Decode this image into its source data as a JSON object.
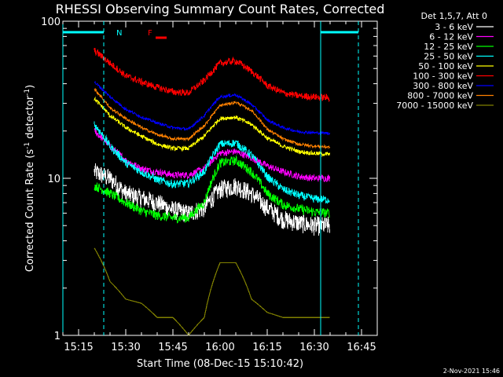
{
  "chart_data": {
    "type": "line",
    "title": "RHESSI Observing Summary Count Rates, Corrected",
    "xlabel": "Start Time (08-Dec-15 15:10:42)",
    "ylabel": "Corrected Count Rate (s",
    "ylabel_sup1": "-1",
    "ylabel_mid": " detector",
    "ylabel_sup2": "-1",
    "ylabel_end": ")",
    "y_scale": "log",
    "ylim": [
      1,
      100
    ],
    "yticks": [
      {
        "v": 1,
        "label": "1"
      },
      {
        "v": 10,
        "label": "10"
      },
      {
        "v": 100,
        "label": "100"
      }
    ],
    "xlim": [
      "15:10",
      "16:50"
    ],
    "xticks": [
      "15:15",
      "15:30",
      "15:45",
      "16:00",
      "16:15",
      "16:30",
      "16:45"
    ],
    "legend_title": "Det 1,5,7, Att 0",
    "legend_position": "right",
    "footer_date": "2-Nov-2021 15:46",
    "annotations": [
      {
        "label": "N",
        "time": "15:27",
        "color": "#00ffff"
      },
      {
        "label": "F",
        "time": "15:37",
        "color": "#ff0000"
      }
    ],
    "night_markers": {
      "solid": [
        "15:10",
        "16:32"
      ],
      "dashed": [
        "15:23",
        "16:44"
      ],
      "bars": [
        [
          "15:10",
          "15:23"
        ],
        [
          "16:32",
          "16:44"
        ]
      ],
      "color": "#00ffff"
    },
    "series_x": [
      "15:20",
      "15:25",
      "15:30",
      "15:35",
      "15:40",
      "15:45",
      "15:50",
      "15:55",
      "16:00",
      "16:05",
      "16:10",
      "16:15",
      "16:20",
      "16:25",
      "16:30",
      "16:35"
    ],
    "series": [
      {
        "name": "3 - 6 keV",
        "color": "#ffffff",
        "noise": 0.14,
        "values": [
          11.0,
          10.0,
          8.0,
          7.5,
          7.0,
          6.3,
          6.0,
          6.5,
          8.5,
          9.0,
          8.0,
          6.5,
          5.5,
          5.2,
          5.0,
          5.0
        ]
      },
      {
        "name": "6 - 12 keV",
        "color": "#ff00ff",
        "noise": 0.05,
        "values": [
          20.0,
          16.0,
          13.0,
          11.5,
          11.0,
          10.5,
          10.5,
          11.5,
          14.5,
          14.8,
          13.5,
          12.0,
          11.0,
          10.3,
          10.0,
          10.0
        ]
      },
      {
        "name": "12 - 25 keV",
        "color": "#00ff00",
        "noise": 0.07,
        "values": [
          9.0,
          8.0,
          7.0,
          6.2,
          5.8,
          5.6,
          5.6,
          7.0,
          12.5,
          13.0,
          11.0,
          8.0,
          6.8,
          6.4,
          6.1,
          6.0
        ]
      },
      {
        "name": "25 - 50 keV",
        "color": "#00ffff",
        "noise": 0.06,
        "values": [
          22.0,
          16.0,
          12.5,
          11.0,
          9.8,
          9.2,
          9.3,
          11.0,
          16.5,
          16.8,
          14.0,
          10.2,
          8.5,
          7.8,
          7.4,
          7.3
        ]
      },
      {
        "name": "50 - 100 keV",
        "color": "#ffff00",
        "noise": 0.03,
        "values": [
          32.0,
          25.0,
          21.0,
          18.5,
          16.5,
          15.5,
          15.5,
          18.5,
          24.0,
          24.5,
          22.0,
          18.0,
          16.0,
          14.8,
          14.4,
          14.2
        ]
      },
      {
        "name": "100 - 300 keV",
        "color": "#ff0000",
        "noise": 0.05,
        "values": [
          65.0,
          54.0,
          45.0,
          41.0,
          38.0,
          35.5,
          35.0,
          42.0,
          54.0,
          56.0,
          48.0,
          39.0,
          35.0,
          33.5,
          33.0,
          32.5
        ]
      },
      {
        "name": "300 - 800 keV",
        "color": "#0000ff",
        "noise": 0.02,
        "values": [
          41.0,
          33.0,
          27.5,
          24.5,
          22.5,
          21.0,
          20.5,
          25.0,
          33.0,
          34.0,
          29.5,
          23.5,
          21.0,
          19.8,
          19.5,
          19.4
        ]
      },
      {
        "name": "800 - 7000 keV",
        "color": "#ff8000",
        "noise": 0.02,
        "values": [
          37.0,
          28.0,
          24.0,
          21.0,
          19.0,
          17.8,
          17.8,
          21.5,
          29.0,
          30.5,
          27.0,
          20.5,
          17.8,
          16.5,
          16.0,
          15.8
        ]
      },
      {
        "name": "7000 - 15000 keV",
        "color": "#808000",
        "noise": 0.0,
        "values": [
          3.6,
          2.2,
          1.7,
          1.6,
          1.3,
          1.3,
          1.0,
          1.3,
          2.9,
          2.9,
          1.7,
          1.4,
          1.3,
          1.3,
          1.3,
          1.3
        ]
      }
    ]
  }
}
